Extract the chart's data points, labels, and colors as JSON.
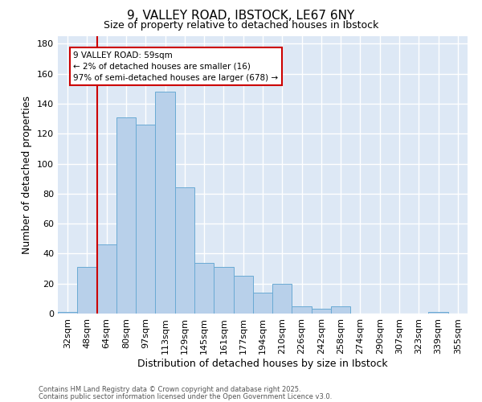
{
  "title_line1": "9, VALLEY ROAD, IBSTOCK, LE67 6NY",
  "title_line2": "Size of property relative to detached houses in Ibstock",
  "xlabel": "Distribution of detached houses by size in Ibstock",
  "ylabel": "Number of detached properties",
  "categories": [
    "32sqm",
    "48sqm",
    "64sqm",
    "80sqm",
    "97sqm",
    "113sqm",
    "129sqm",
    "145sqm",
    "161sqm",
    "177sqm",
    "194sqm",
    "210sqm",
    "226sqm",
    "242sqm",
    "258sqm",
    "274sqm",
    "290sqm",
    "307sqm",
    "323sqm",
    "339sqm",
    "355sqm"
  ],
  "values": [
    1,
    31,
    46,
    131,
    126,
    148,
    84,
    34,
    31,
    25,
    14,
    20,
    5,
    3,
    5,
    0,
    0,
    0,
    0,
    1,
    0
  ],
  "bar_color": "#b8d0ea",
  "bar_edge_color": "#6aaad4",
  "bg_color": "#dde8f5",
  "grid_color": "#ffffff",
  "red_line_x": 1.5,
  "annotation_text": "9 VALLEY ROAD: 59sqm\n← 2% of detached houses are smaller (16)\n97% of semi-detached houses are larger (678) →",
  "annotation_box_color": "#ffffff",
  "annotation_border_color": "#cc0000",
  "red_line_color": "#cc0000",
  "footer_line1": "Contains HM Land Registry data © Crown copyright and database right 2025.",
  "footer_line2": "Contains public sector information licensed under the Open Government Licence v3.0.",
  "ylim": [
    0,
    185
  ],
  "yticks": [
    0,
    20,
    40,
    60,
    80,
    100,
    120,
    140,
    160,
    180
  ],
  "fig_bg": "#ffffff"
}
